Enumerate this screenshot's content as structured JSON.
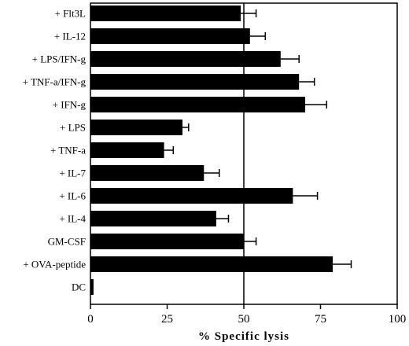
{
  "chart_data": {
    "type": "bar",
    "orientation": "horizontal",
    "categories": [
      "+ Flt3L",
      "+ IL-12",
      "+ LPS/IFN-g",
      "+ TNF-a/IFN-g",
      "+ IFN-g",
      "+ LPS",
      "+ TNF-a",
      "+ IL-7",
      "+ IL-6",
      "+ IL-4",
      "GM-CSF",
      "+ OVA-peptide",
      "DC"
    ],
    "values": [
      49,
      52,
      62,
      68,
      70,
      30,
      24,
      37,
      66,
      41,
      50,
      79,
      1
    ],
    "errors": [
      5,
      5,
      6,
      5,
      7,
      2,
      3,
      5,
      8,
      4,
      4,
      6,
      0
    ],
    "title": "",
    "xlabel": "% Specific lysis",
    "ylabel": "",
    "xlim": [
      0,
      100
    ],
    "xticks": [
      "0",
      "25",
      "50",
      "75",
      "100"
    ],
    "reference_line": 50,
    "bar_color": "#000000",
    "grid": false
  }
}
